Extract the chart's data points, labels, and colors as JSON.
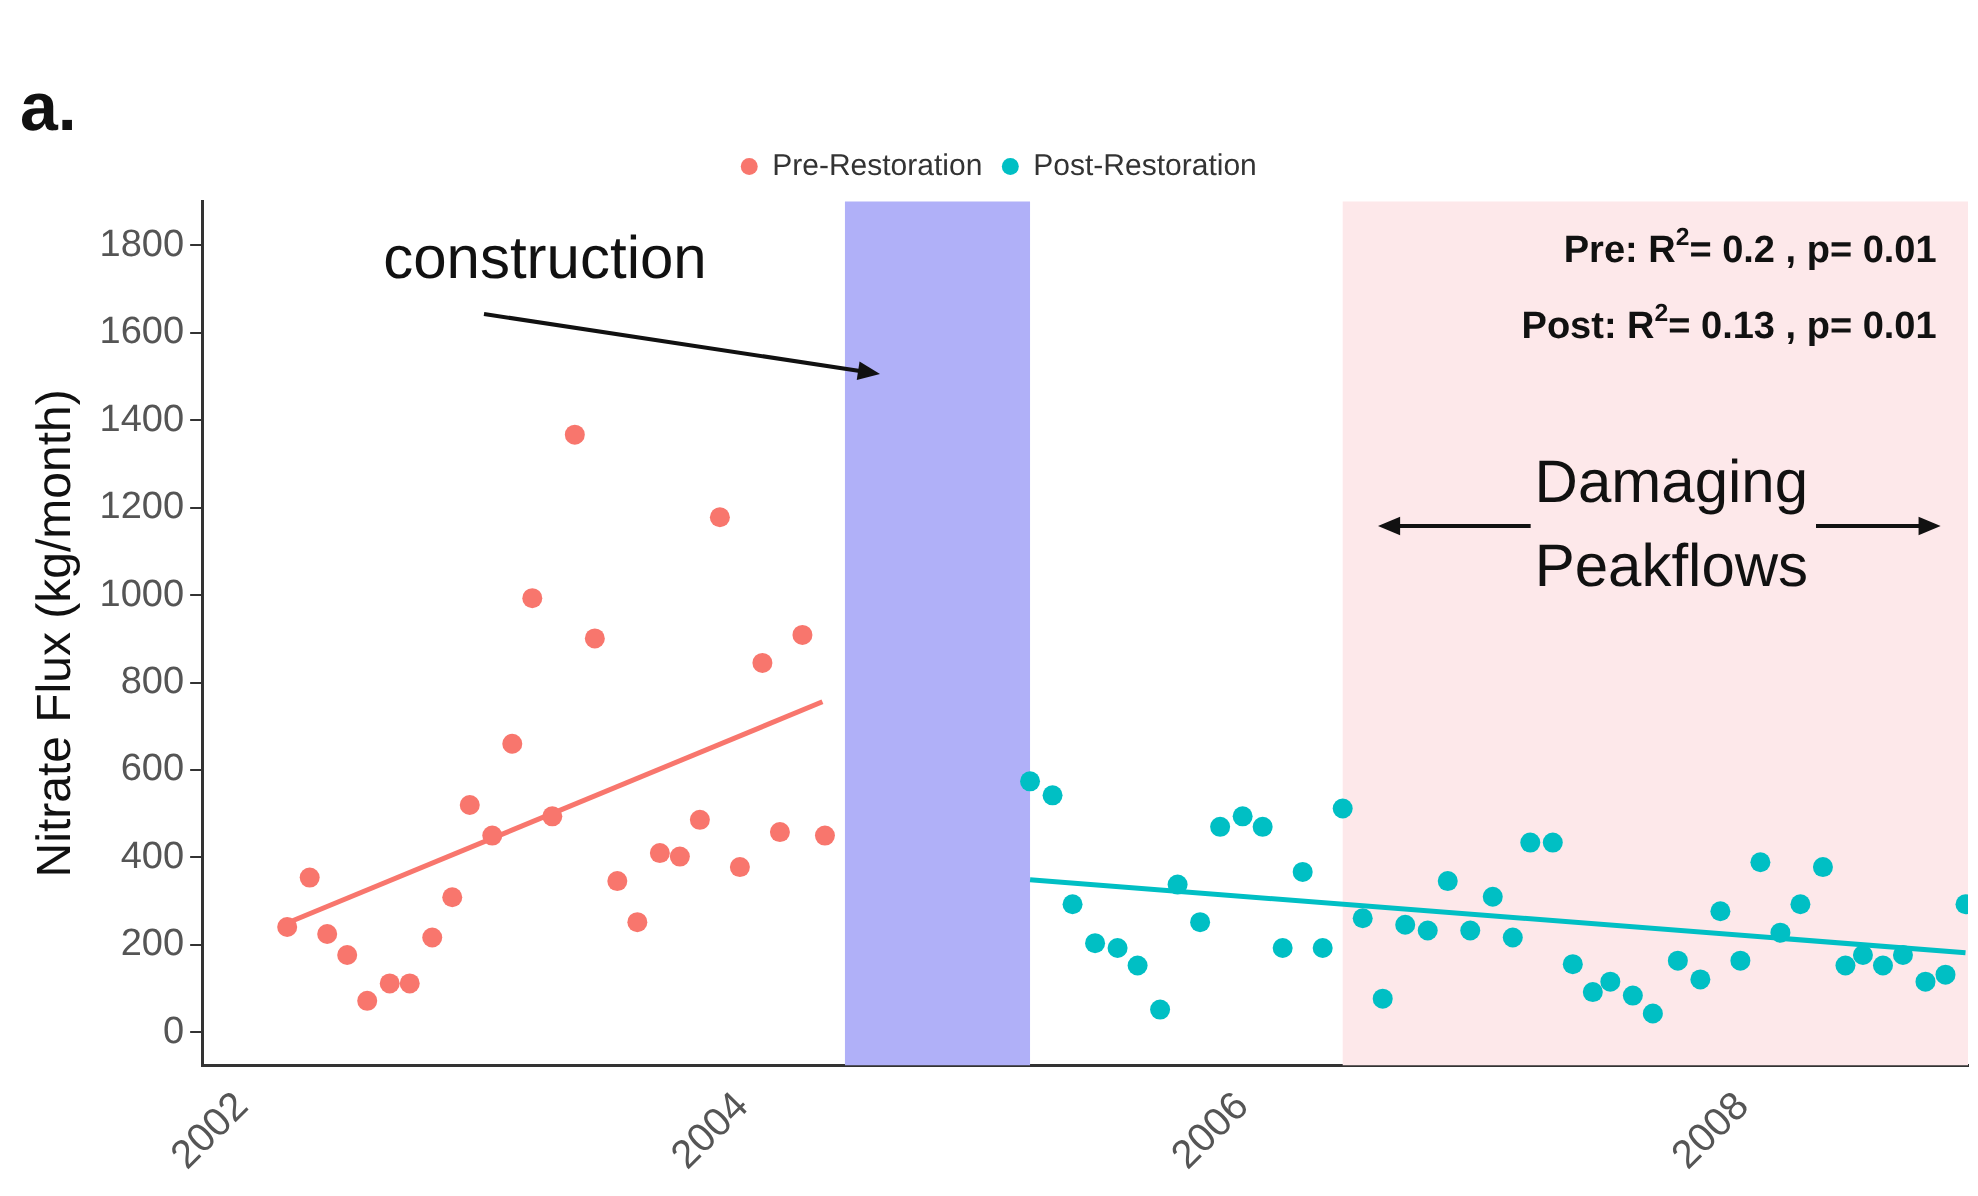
{
  "chart_data": {
    "type": "scatter",
    "title": "a.",
    "ylabel": "Nitrate Flux (kg/month)",
    "xlim": [
      2001.84,
      2008.9
    ],
    "xticks": [
      2002,
      2004,
      2006,
      2008
    ],
    "ylim": [
      -75,
      1900
    ],
    "yticks": [
      0,
      200,
      400,
      600,
      800,
      1000,
      1200,
      1400,
      1600,
      1800
    ],
    "grid": false,
    "legend": "top",
    "marker": "circle",
    "series": [
      {
        "name": "Pre-Restoration",
        "color": "#f8766d",
        "x": [
          2002.18,
          2002.27,
          2002.34,
          2002.42,
          2002.5,
          2002.59,
          2002.67,
          2002.76,
          2002.84,
          2002.91,
          2003.0,
          2003.08,
          2003.16,
          2003.24,
          2003.33,
          2003.41,
          2003.5,
          2003.58,
          2003.67,
          2003.75,
          2003.83,
          2003.91,
          2003.99,
          2004.08,
          2004.15,
          2004.24,
          2004.33
        ],
        "values": [
          241,
          354,
          225,
          177,
          72,
          112,
          112,
          217,
          309,
          520,
          450,
          660,
          993,
          494,
          1367,
          901,
          346,
          252,
          410,
          402,
          486,
          1178,
          378,
          845,
          458,
          909,
          450
        ]
      },
      {
        "name": "Post-Restoration",
        "color": "#00bfc4",
        "x": [
          2005.15,
          2005.24,
          2005.32,
          2005.41,
          2005.5,
          2005.58,
          2005.67,
          2005.74,
          2005.83,
          2005.91,
          2006.0,
          2006.08,
          2006.16,
          2006.24,
          2006.32,
          2006.4,
          2006.48,
          2006.56,
          2006.65,
          2006.74,
          2006.82,
          2006.91,
          2007.0,
          2007.08,
          2007.15,
          2007.24,
          2007.32,
          2007.4,
          2007.47,
          2007.56,
          2007.64,
          2007.74,
          2007.83,
          2007.91,
          2007.99,
          2008.07,
          2008.15,
          2008.23,
          2008.32,
          2008.41,
          2008.48,
          2008.56,
          2008.64,
          2008.73,
          2008.81,
          2008.89
        ],
        "values": [
          574,
          542,
          293,
          204,
          193,
          153,
          52,
          338,
          252,
          470,
          494,
          470,
          193,
          367,
          193,
          512,
          261,
          77,
          246,
          233,
          346,
          233,
          310,
          217,
          434,
          434,
          156,
          92,
          116,
          84,
          43,
          164,
          121,
          277,
          164,
          389,
          228,
          293,
          378,
          153,
          177,
          153,
          177,
          116,
          132,
          293
        ]
      },
      {
        "type": "line",
        "marker": "none",
        "color": "#f8766d",
        "x": [
          2002.18,
          2004.32
        ],
        "values": [
          250,
          756
        ]
      },
      {
        "type": "line",
        "marker": "none",
        "color": "#00bfc4",
        "x": [
          2005.15,
          2008.89
        ],
        "values": [
          349,
          182
        ]
      }
    ],
    "bands": [
      {
        "axis": "x",
        "from": 2004.41,
        "to": 2005.15,
        "label": "construction",
        "color": "#b0b0f8"
      },
      {
        "axis": "x",
        "from": 2006.4,
        "to": 2008.9,
        "label": "Damaging Peakflows",
        "color": "#fde8ea"
      }
    ],
    "annotations": [
      "Pre: R$^{2}$= 0.2 , p= 0.01",
      "Post: R$^{2}$= 0.13 , p= 0.01"
    ]
  }
}
